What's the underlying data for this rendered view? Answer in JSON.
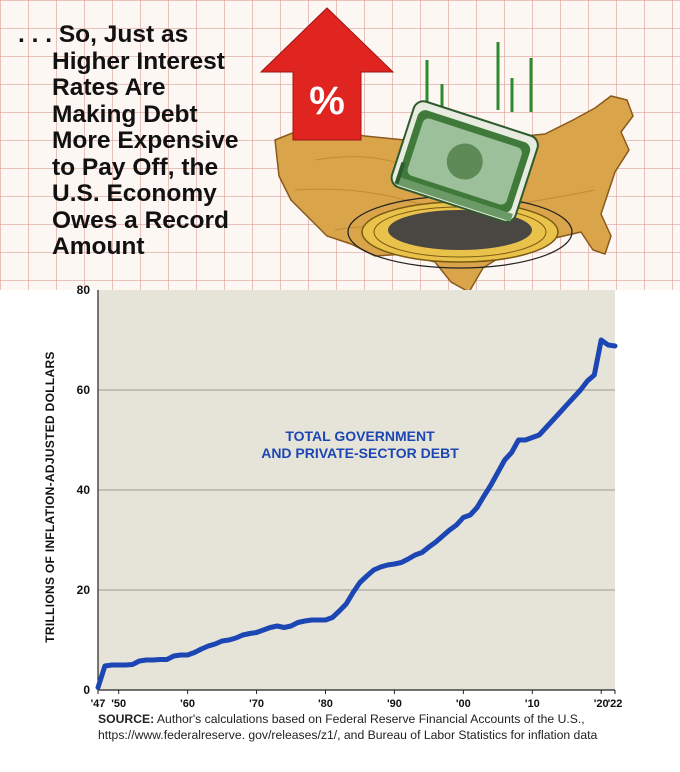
{
  "headline": {
    "lines": [
      ". . . So, Just as",
      "Higher Interest",
      "Rates Are",
      "Making Debt",
      "More Expensive",
      "to Pay Off, the",
      "U.S. Economy",
      "Owes a Record",
      "Amount"
    ]
  },
  "illustration": {
    "arrow_symbol": "%",
    "colors": {
      "arrow": "#e0241f",
      "map": "#d9a44a",
      "money": "#3f7a3a"
    },
    "icons": [
      "up-arrow-icon",
      "us-map-icon",
      "money-stack-icon",
      "hole-icon"
    ]
  },
  "chart_data": {
    "type": "line",
    "title": "",
    "xlabel": "",
    "ylabel": "TRILLIONS OF INFLATION-ADJUSTED DOLLARS",
    "annotation": [
      "TOTAL GOVERNMENT",
      "AND PRIVATE-SECTOR DEBT"
    ],
    "xlim": [
      1947,
      2022
    ],
    "ylim": [
      0,
      80
    ],
    "x_ticks": [
      1947,
      1950,
      1960,
      1970,
      1980,
      1990,
      2000,
      2010,
      2020,
      2022
    ],
    "x_tick_labels": [
      "'47",
      "'50",
      "'60",
      "'70",
      "'80",
      "'90",
      "'00",
      "'10",
      "'20",
      "'22"
    ],
    "y_ticks": [
      0,
      20,
      40,
      60,
      80
    ],
    "y_tick_labels": [
      "0",
      "20",
      "40",
      "60",
      "80"
    ],
    "grid": true,
    "series": [
      {
        "color": "#1c46b3",
        "x": [
          1947,
          1948,
          1949,
          1950,
          1951,
          1952,
          1953,
          1954,
          1955,
          1956,
          1957,
          1958,
          1959,
          1960,
          1961,
          1962,
          1963,
          1964,
          1965,
          1966,
          1967,
          1968,
          1969,
          1970,
          1971,
          1972,
          1973,
          1974,
          1975,
          1976,
          1977,
          1978,
          1979,
          1980,
          1981,
          1982,
          1983,
          1984,
          1985,
          1986,
          1987,
          1988,
          1989,
          1990,
          1991,
          1992,
          1993,
          1994,
          1995,
          1996,
          1997,
          1998,
          1999,
          2000,
          2001,
          2002,
          2003,
          2004,
          2005,
          2006,
          2007,
          2008,
          2009,
          2010,
          2011,
          2012,
          2013,
          2014,
          2015,
          2016,
          2017,
          2018,
          2019,
          2020,
          2021,
          2022
        ],
        "y": [
          0.5,
          4.8,
          5.0,
          5.0,
          5.0,
          5.1,
          5.8,
          6.0,
          6.0,
          6.1,
          6.1,
          6.8,
          7.0,
          7.0,
          7.5,
          8.2,
          8.8,
          9.2,
          9.8,
          10.0,
          10.4,
          11.0,
          11.3,
          11.5,
          12.0,
          12.5,
          12.8,
          12.5,
          12.8,
          13.5,
          13.8,
          14.0,
          14.0,
          14.0,
          14.5,
          15.8,
          17.2,
          19.5,
          21.5,
          22.8,
          24.0,
          24.6,
          25.0,
          25.2,
          25.5,
          26.2,
          27.0,
          27.5,
          28.6,
          29.6,
          30.8,
          32.0,
          33.0,
          34.5,
          35.0,
          36.5,
          38.8,
          41.0,
          43.5,
          46.0,
          47.5,
          50.0,
          50.0,
          50.5,
          51.0,
          52.5,
          54.0,
          55.5,
          57.0,
          58.5,
          60.0,
          61.8,
          63.0,
          70.0,
          69.0,
          68.8
        ]
      }
    ]
  },
  "source": {
    "label": "SOURCE:",
    "text": " Author's calculations based on Federal Reserve Financial Accounts of the U.S., https://www.federalreserve. gov/releases/z1/, and Bureau of Labor Statistics for inflation data"
  }
}
